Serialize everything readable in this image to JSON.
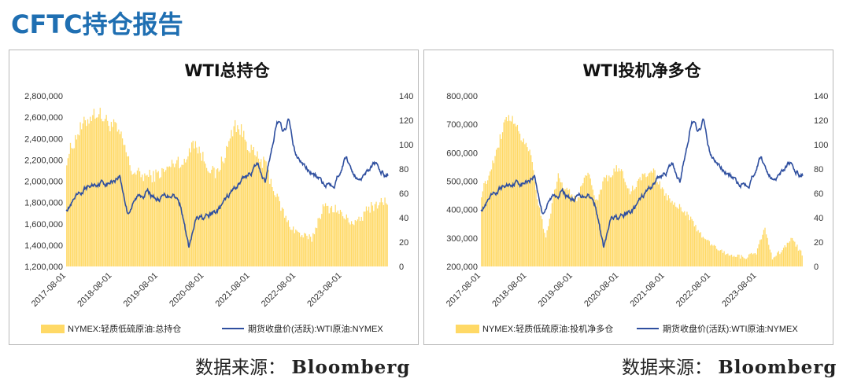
{
  "page_title": "CFTC持仓报告",
  "colors": {
    "title": "#1f6fb2",
    "bar": "#ffd966",
    "line": "#2f4f9f",
    "axis_text": "#333333"
  },
  "sources": [
    {
      "label": "数据来源：",
      "name": "Bloomberg"
    },
    {
      "label": "数据来源：",
      "name": "Bloomberg"
    }
  ],
  "chart_data": [
    {
      "type": "bar+line",
      "title": "WTI总持仓",
      "xlabel": "",
      "ylabel_left": "",
      "ylabel_right": "",
      "x_range": [
        "2017-08-01",
        "2024-08-01"
      ],
      "x_ticks": [
        "2017-08-01",
        "2018-08-01",
        "2019-08-01",
        "2020-08-01",
        "2021-08-01",
        "2022-08-01",
        "2023-08-01"
      ],
      "ylim_left": [
        1200000,
        2800000
      ],
      "yticks_left": [
        "1,200,000",
        "1,400,000",
        "1,600,000",
        "1,800,000",
        "2,000,000",
        "2,200,000",
        "2,400,000",
        "2,600,000",
        "2,800,000"
      ],
      "ylim_right": [
        0,
        140
      ],
      "yticks_right": [
        "0",
        "20",
        "40",
        "60",
        "80",
        "100",
        "120",
        "140"
      ],
      "legend_position": "bottom",
      "series": [
        {
          "name": "NYMEX:轻质低硫原油:总持仓",
          "kind": "bar",
          "axis": "left",
          "points": [
            [
              "2017-08-01",
              2200000
            ],
            [
              "2017-11-01",
              2450000
            ],
            [
              "2018-02-01",
              2600000
            ],
            [
              "2018-04-01",
              2650000
            ],
            [
              "2018-07-01",
              2550000
            ],
            [
              "2018-09-01",
              2500000
            ],
            [
              "2018-11-01",
              2350000
            ],
            [
              "2019-01-01",
              2100000
            ],
            [
              "2019-04-01",
              2050000
            ],
            [
              "2019-07-01",
              2050000
            ],
            [
              "2019-10-01",
              2100000
            ],
            [
              "2020-01-01",
              2200000
            ],
            [
              "2020-03-01",
              2150000
            ],
            [
              "2020-05-01",
              2400000
            ],
            [
              "2020-08-01",
              2200000
            ],
            [
              "2020-11-01",
              2050000
            ],
            [
              "2021-02-01",
              2300000
            ],
            [
              "2021-04-01",
              2550000
            ],
            [
              "2021-06-01",
              2450000
            ],
            [
              "2021-09-01",
              2250000
            ],
            [
              "2021-12-01",
              2150000
            ],
            [
              "2022-03-01",
              1850000
            ],
            [
              "2022-06-01",
              1600000
            ],
            [
              "2022-09-01",
              1500000
            ],
            [
              "2022-12-01",
              1450000
            ],
            [
              "2023-03-01",
              1750000
            ],
            [
              "2023-06-01",
              1750000
            ],
            [
              "2023-09-01",
              1650000
            ],
            [
              "2023-12-01",
              1600000
            ],
            [
              "2024-03-01",
              1750000
            ],
            [
              "2024-06-01",
              1800000
            ],
            [
              "2024-08-01",
              1820000
            ]
          ]
        },
        {
          "name": "期货收盘价(活跃):WTI原油:NYMEX",
          "kind": "line",
          "axis": "right",
          "points": [
            [
              "2017-08-01",
              48
            ],
            [
              "2017-11-01",
              56
            ],
            [
              "2018-01-01",
              63
            ],
            [
              "2018-05-01",
              70
            ],
            [
              "2018-07-01",
              68
            ],
            [
              "2018-10-01",
              75
            ],
            [
              "2018-12-01",
              45
            ],
            [
              "2019-03-01",
              58
            ],
            [
              "2019-05-01",
              62
            ],
            [
              "2019-08-01",
              55
            ],
            [
              "2019-12-01",
              61
            ],
            [
              "2020-02-01",
              50
            ],
            [
              "2020-04-01",
              15
            ],
            [
              "2020-06-01",
              38
            ],
            [
              "2020-09-01",
              40
            ],
            [
              "2020-12-01",
              47
            ],
            [
              "2021-03-01",
              60
            ],
            [
              "2021-06-01",
              72
            ],
            [
              "2021-10-01",
              83
            ],
            [
              "2021-12-01",
              70
            ],
            [
              "2022-03-01",
              120
            ],
            [
              "2022-05-01",
              110
            ],
            [
              "2022-06-01",
              120
            ],
            [
              "2022-08-01",
              90
            ],
            [
              "2022-11-01",
              80
            ],
            [
              "2023-03-01",
              68
            ],
            [
              "2023-06-01",
              70
            ],
            [
              "2023-09-01",
              90
            ],
            [
              "2023-12-01",
              71
            ],
            [
              "2024-04-01",
              85
            ],
            [
              "2024-06-01",
              78
            ],
            [
              "2024-08-01",
              75
            ]
          ]
        }
      ]
    },
    {
      "type": "bar+line",
      "title": "WTI投机净多仓",
      "xlabel": "",
      "ylabel_left": "",
      "ylabel_right": "",
      "x_range": [
        "2017-08-01",
        "2024-08-01"
      ],
      "x_ticks": [
        "2017-08-01",
        "2018-08-01",
        "2019-08-01",
        "2020-08-01",
        "2021-08-01",
        "2022-08-01",
        "2023-08-01"
      ],
      "ylim_left": [
        200000,
        800000
      ],
      "yticks_left": [
        "200,000",
        "300,000",
        "400,000",
        "500,000",
        "600,000",
        "700,000",
        "800,000"
      ],
      "ylim_right": [
        0,
        140
      ],
      "yticks_right": [
        "0",
        "20",
        "40",
        "60",
        "80",
        "100",
        "120",
        "140"
      ],
      "legend_position": "bottom",
      "series": [
        {
          "name": "NYMEX:轻质低硫原油:投机净多仓",
          "kind": "bar",
          "axis": "left",
          "points": [
            [
              "2017-08-01",
              450000
            ],
            [
              "2017-11-01",
              560000
            ],
            [
              "2018-02-01",
              700000
            ],
            [
              "2018-04-01",
              720000
            ],
            [
              "2018-07-01",
              650000
            ],
            [
              "2018-09-01",
              600000
            ],
            [
              "2018-11-01",
              420000
            ],
            [
              "2019-01-01",
              300000
            ],
            [
              "2019-04-01",
              520000
            ],
            [
              "2019-06-01",
              480000
            ],
            [
              "2019-09-01",
              430000
            ],
            [
              "2019-12-01",
              540000
            ],
            [
              "2020-02-01",
              420000
            ],
            [
              "2020-04-01",
              500000
            ],
            [
              "2020-08-01",
              550000
            ],
            [
              "2020-11-01",
              460000
            ],
            [
              "2021-02-01",
              520000
            ],
            [
              "2021-05-01",
              540000
            ],
            [
              "2021-08-01",
              450000
            ],
            [
              "2021-11-01",
              420000
            ],
            [
              "2022-02-01",
              380000
            ],
            [
              "2022-05-01",
              320000
            ],
            [
              "2022-08-01",
              280000
            ],
            [
              "2022-11-01",
              250000
            ],
            [
              "2023-02-01",
              240000
            ],
            [
              "2023-05-01",
              230000
            ],
            [
              "2023-08-01",
              250000
            ],
            [
              "2023-10-01",
              340000
            ],
            [
              "2023-12-01",
              230000
            ],
            [
              "2024-03-01",
              260000
            ],
            [
              "2024-05-01",
              300000
            ],
            [
              "2024-08-01",
              240000
            ]
          ]
        },
        {
          "name": "期货收盘价(活跃):WTI原油:NYMEX",
          "kind": "line",
          "axis": "right",
          "points": [
            [
              "2017-08-01",
              48
            ],
            [
              "2017-11-01",
              56
            ],
            [
              "2018-01-01",
              63
            ],
            [
              "2018-05-01",
              70
            ],
            [
              "2018-07-01",
              68
            ],
            [
              "2018-10-01",
              75
            ],
            [
              "2018-12-01",
              45
            ],
            [
              "2019-03-01",
              58
            ],
            [
              "2019-05-01",
              62
            ],
            [
              "2019-08-01",
              55
            ],
            [
              "2019-12-01",
              61
            ],
            [
              "2020-02-01",
              50
            ],
            [
              "2020-04-01",
              15
            ],
            [
              "2020-06-01",
              38
            ],
            [
              "2020-09-01",
              40
            ],
            [
              "2020-12-01",
              47
            ],
            [
              "2021-03-01",
              60
            ],
            [
              "2021-06-01",
              72
            ],
            [
              "2021-10-01",
              83
            ],
            [
              "2021-12-01",
              70
            ],
            [
              "2022-03-01",
              120
            ],
            [
              "2022-05-01",
              110
            ],
            [
              "2022-06-01",
              120
            ],
            [
              "2022-08-01",
              90
            ],
            [
              "2022-11-01",
              80
            ],
            [
              "2023-03-01",
              68
            ],
            [
              "2023-06-01",
              70
            ],
            [
              "2023-09-01",
              90
            ],
            [
              "2023-12-01",
              71
            ],
            [
              "2024-04-01",
              85
            ],
            [
              "2024-06-01",
              78
            ],
            [
              "2024-08-01",
              75
            ]
          ]
        }
      ]
    }
  ]
}
